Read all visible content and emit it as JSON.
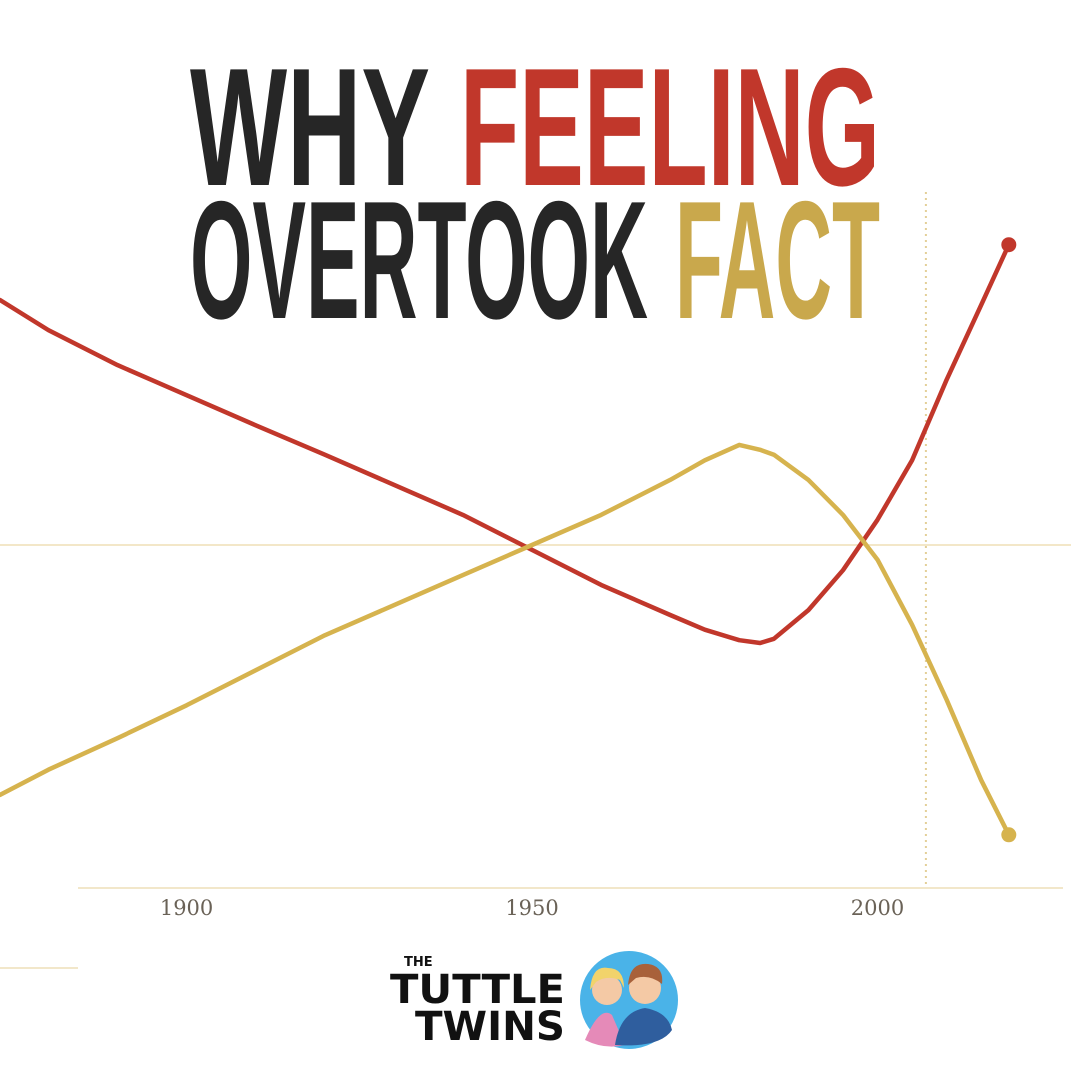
{
  "chart_data": {
    "type": "line",
    "title": {
      "line1": [
        "WHY",
        "FEELING"
      ],
      "line2": [
        "OVERTOOK",
        "FACT"
      ]
    },
    "x": [
      1873,
      1880,
      1890,
      1900,
      1910,
      1920,
      1930,
      1940,
      1950,
      1960,
      1970,
      1975,
      1980,
      1983,
      1985,
      1990,
      1995,
      2000,
      2005,
      2010,
      2015,
      2019
    ],
    "series": [
      {
        "color": "#c1372b",
        "values": [
          84.0,
          79.7,
          74.7,
          70.4,
          66.1,
          61.9,
          57.6,
          53.3,
          48.3,
          43.3,
          39.0,
          36.9,
          35.4,
          35.0,
          35.6,
          39.7,
          45.4,
          52.6,
          61.1,
          72.6,
          83.3,
          91.9
        ]
      },
      {
        "color": "#d6b34e",
        "values": [
          13.3,
          16.9,
          21.4,
          26.1,
          31.1,
          36.1,
          40.4,
          44.7,
          49.0,
          53.3,
          58.3,
          61.1,
          63.3,
          62.6,
          61.9,
          58.3,
          53.3,
          46.9,
          37.6,
          26.9,
          15.4,
          7.6
        ]
      }
    ],
    "xlim": [
      1873,
      2028
    ],
    "xticks": [
      1900,
      1950,
      2000
    ],
    "ylim": [
      0,
      100
    ],
    "reference_lines": {
      "y": 49,
      "x": 2007
    },
    "title_colors": [
      "#262626",
      "#c1372b",
      "#262626",
      "#c9a84c"
    ],
    "logo": {
      "small": "THE",
      "line1": "TUTTLE",
      "line2": "TWINS"
    }
  }
}
